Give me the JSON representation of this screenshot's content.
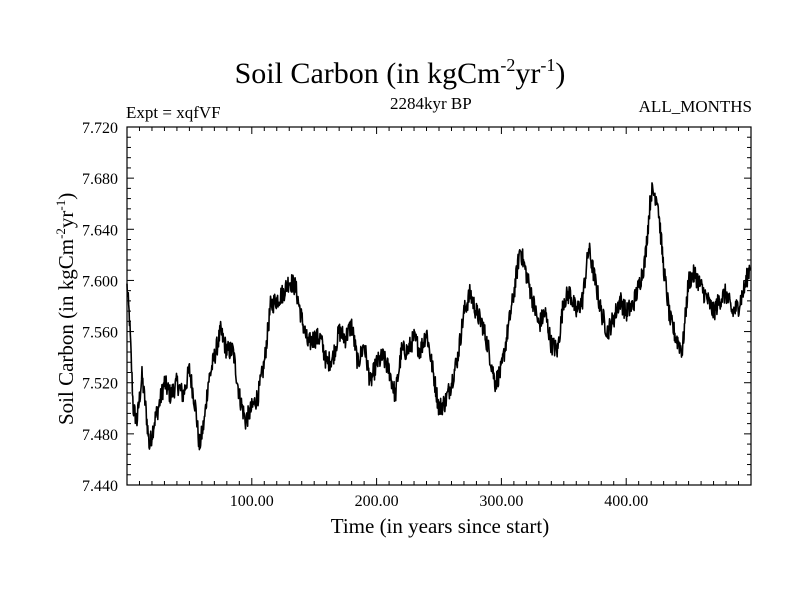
{
  "chart_data": {
    "type": "line",
    "title": {
      "prefix": "Soil Carbon (in kgCm",
      "sup1": "-2",
      "mid": "yr",
      "sup2": "-1",
      "suffix": ")"
    },
    "subtitle": "2284kyr BP",
    "expt_label": "Expt = xqfVF",
    "period_label": "ALL_MONTHS",
    "xlabel": "Time (in years since start)",
    "ylabel": {
      "prefix": "Soil Carbon (in kgCm",
      "sup1": "-2",
      "mid": "yr",
      "sup2": "-1",
      "suffix": ")"
    },
    "xlim": [
      0,
      500
    ],
    "ylim": [
      7.44,
      7.72
    ],
    "xticks": [
      100,
      200,
      300,
      400
    ],
    "xtick_labels": [
      "100.00",
      "200.00",
      "300.00",
      "400.00"
    ],
    "yticks": [
      7.44,
      7.48,
      7.52,
      7.56,
      7.6,
      7.64,
      7.68,
      7.72
    ],
    "ytick_labels": [
      "7.440",
      "7.480",
      "7.520",
      "7.560",
      "7.600",
      "7.640",
      "7.680",
      "7.720"
    ],
    "series": [
      {
        "name": "soil_carbon",
        "color": "#000000",
        "noise": 0.008,
        "x": [
          0,
          2,
          5,
          8,
          12,
          15,
          18,
          22,
          25,
          30,
          35,
          40,
          45,
          50,
          55,
          58,
          62,
          65,
          70,
          75,
          80,
          85,
          90,
          95,
          100,
          105,
          110,
          115,
          120,
          125,
          130,
          135,
          140,
          145,
          150,
          155,
          160,
          165,
          170,
          175,
          180,
          185,
          190,
          195,
          200,
          205,
          210,
          215,
          220,
          225,
          230,
          235,
          240,
          245,
          250,
          255,
          260,
          265,
          270,
          275,
          280,
          285,
          290,
          295,
          300,
          305,
          310,
          315,
          320,
          325,
          330,
          335,
          340,
          345,
          350,
          355,
          360,
          365,
          370,
          375,
          380,
          385,
          390,
          395,
          400,
          405,
          410,
          415,
          420,
          425,
          430,
          435,
          440,
          445,
          450,
          455,
          460,
          465,
          470,
          475,
          480,
          485,
          490,
          495,
          500
        ],
        "y": [
          7.595,
          7.57,
          7.5,
          7.49,
          7.525,
          7.5,
          7.47,
          7.49,
          7.5,
          7.52,
          7.51,
          7.52,
          7.51,
          7.53,
          7.5,
          7.47,
          7.49,
          7.52,
          7.54,
          7.56,
          7.545,
          7.545,
          7.51,
          7.49,
          7.5,
          7.51,
          7.535,
          7.58,
          7.585,
          7.59,
          7.6,
          7.595,
          7.57,
          7.55,
          7.555,
          7.555,
          7.535,
          7.54,
          7.56,
          7.555,
          7.565,
          7.535,
          7.55,
          7.52,
          7.535,
          7.54,
          7.53,
          7.51,
          7.545,
          7.545,
          7.555,
          7.545,
          7.56,
          7.53,
          7.5,
          7.505,
          7.52,
          7.54,
          7.575,
          7.59,
          7.575,
          7.565,
          7.545,
          7.52,
          7.53,
          7.56,
          7.59,
          7.625,
          7.605,
          7.585,
          7.565,
          7.575,
          7.55,
          7.545,
          7.585,
          7.59,
          7.575,
          7.585,
          7.625,
          7.6,
          7.575,
          7.56,
          7.57,
          7.585,
          7.575,
          7.58,
          7.595,
          7.615,
          7.67,
          7.665,
          7.61,
          7.57,
          7.555,
          7.545,
          7.6,
          7.605,
          7.595,
          7.585,
          7.575,
          7.585,
          7.59,
          7.575,
          7.58,
          7.595,
          7.615
        ]
      }
    ]
  }
}
